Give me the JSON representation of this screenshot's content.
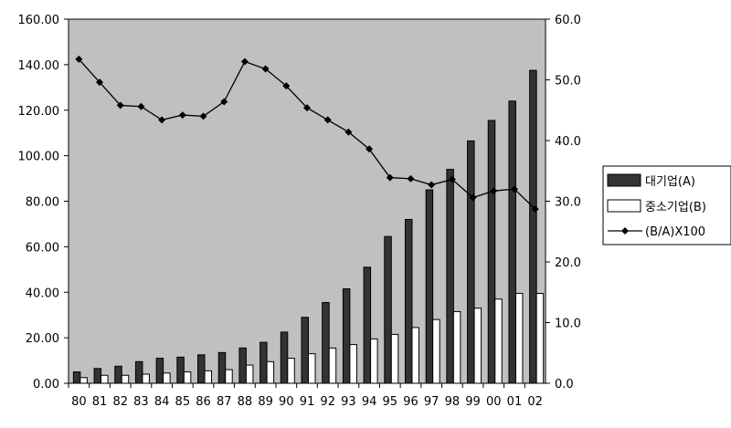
{
  "chart_data": {
    "type": "bar",
    "categories": [
      "80",
      "81",
      "82",
      "83",
      "84",
      "85",
      "86",
      "87",
      "88",
      "89",
      "90",
      "91",
      "92",
      "93",
      "94",
      "95",
      "96",
      "97",
      "98",
      "99",
      "00",
      "01",
      "02"
    ],
    "series": [
      {
        "name": "대기업(A)",
        "kind": "bar",
        "color": "#333333",
        "axis": "left",
        "values": [
          5.0,
          6.5,
          7.5,
          9.5,
          11.0,
          11.5,
          12.5,
          13.5,
          15.5,
          18.0,
          22.5,
          29.0,
          35.5,
          41.5,
          51.0,
          64.5,
          72.0,
          85.0,
          94.0,
          106.5,
          115.5,
          124.0,
          137.5
        ]
      },
      {
        "name": "중소기업(B)",
        "kind": "bar",
        "color": "#ffffff",
        "axis": "left",
        "values": [
          2.5,
          3.5,
          3.5,
          4.0,
          4.5,
          5.0,
          5.5,
          6.0,
          8.0,
          9.5,
          11.0,
          13.0,
          15.5,
          17.0,
          19.5,
          21.5,
          24.5,
          28.0,
          31.5,
          33.0,
          37.0,
          39.5,
          39.5
        ]
      },
      {
        "name": "(B/A)X100",
        "kind": "line",
        "color": "#000000",
        "axis": "right",
        "values": [
          53.4,
          49.6,
          45.8,
          45.6,
          43.4,
          44.2,
          44.0,
          46.4,
          53.0,
          51.8,
          49.0,
          45.4,
          43.4,
          41.4,
          38.6,
          33.9,
          33.7,
          32.7,
          33.6,
          30.6,
          31.7,
          32.0,
          28.7
        ]
      }
    ],
    "y_left": {
      "min": 0,
      "max": 160,
      "step": 20,
      "ticks": [
        "0.00",
        "20.00",
        "40.00",
        "60.00",
        "80.00",
        "100.00",
        "120.00",
        "140.00",
        "160.00"
      ]
    },
    "y_right": {
      "min": 0,
      "max": 60,
      "step": 10,
      "ticks": [
        "0.0",
        "10.0",
        "20.0",
        "30.0",
        "40.0",
        "50.0",
        "60.0"
      ]
    },
    "plot_background": "#c0c0c0",
    "grid": false,
    "legend": "right",
    "title": "",
    "xlabel": "",
    "ylabel": ""
  }
}
